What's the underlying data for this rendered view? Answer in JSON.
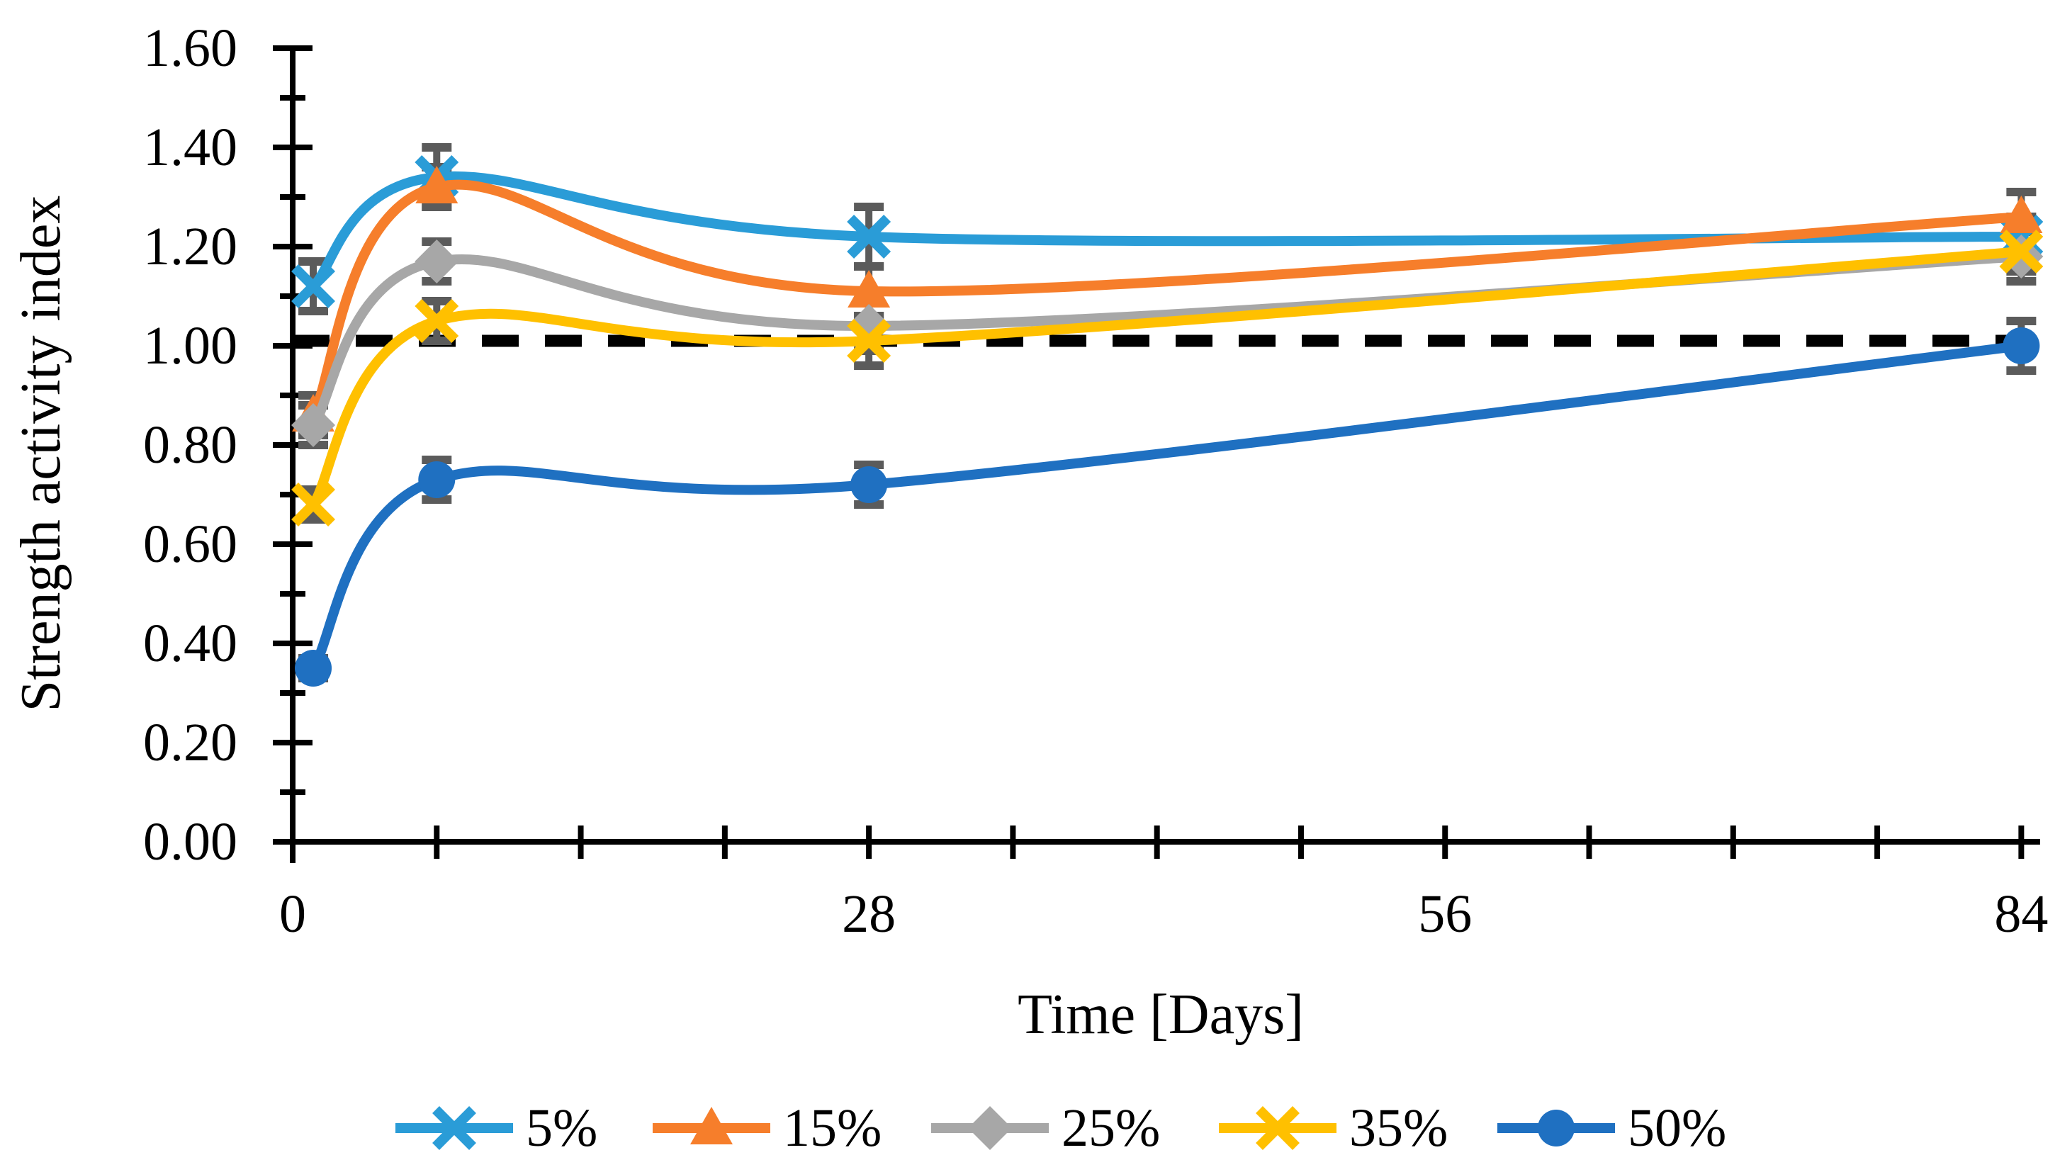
{
  "figure": {
    "background": "#ffffff"
  },
  "chart_data": {
    "type": "line",
    "title": "",
    "xlabel": "Time [Days]",
    "ylabel": "Strength activity index",
    "x": [
      1,
      7,
      28,
      84
    ],
    "xlim": [
      0,
      84.5
    ],
    "ylim": [
      0.0,
      1.6
    ],
    "x_tick_values": [
      0,
      28,
      56,
      84
    ],
    "x_tick_labels": [
      "0",
      "28",
      "56",
      "84"
    ],
    "x_minor_tick_step": 7,
    "y_major_tick_step": 0.2,
    "y_minor_tick_step": 0.1,
    "y_tick_labels": [
      "0.00",
      "0.20",
      "0.40",
      "0.60",
      "0.80",
      "1.00",
      "1.20",
      "1.40",
      "1.60"
    ],
    "grid": false,
    "legend_position": "bottom",
    "reference_line": {
      "value": 1.01,
      "style": "dashed",
      "color": "#000000"
    },
    "error_bar_color": "#5B5B5B",
    "axis_color": "#000000",
    "series": [
      {
        "name": "5%",
        "color": "#2A9CD7",
        "marker": "x",
        "values": [
          1.12,
          1.34,
          1.22,
          1.22
        ],
        "errors": [
          0.05,
          0.06,
          0.06,
          0.04
        ]
      },
      {
        "name": "15%",
        "color": "#F67E2B",
        "marker": "triangle",
        "values": [
          0.86,
          1.32,
          1.11,
          1.26
        ],
        "errors": [
          0.04,
          0.04,
          0.05,
          0.05
        ]
      },
      {
        "name": "25%",
        "color": "#A7A7A7",
        "marker": "diamond",
        "values": [
          0.84,
          1.17,
          1.04,
          1.18
        ],
        "errors": [
          0.04,
          0.04,
          0.05,
          0.05
        ]
      },
      {
        "name": "35%",
        "color": "#FFC000",
        "marker": "x",
        "values": [
          0.68,
          1.05,
          1.01,
          1.19
        ],
        "errors": [
          0.03,
          0.04,
          0.05,
          0.04
        ]
      },
      {
        "name": "50%",
        "color": "#1F70C1",
        "marker": "circle",
        "values": [
          0.35,
          0.73,
          0.72,
          1.0
        ],
        "errors": [
          0.02,
          0.04,
          0.04,
          0.05
        ]
      }
    ]
  }
}
